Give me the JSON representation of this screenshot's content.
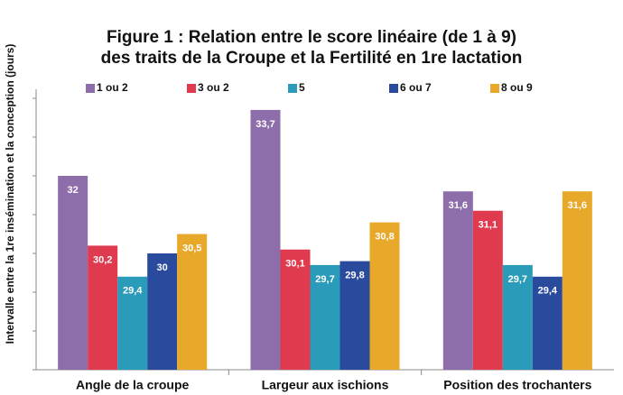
{
  "chart_data": {
    "type": "bar",
    "title": [
      "Figure 1 : Relation entre le score linéaire (de 1 à 9)",
      "des traits de la Croupe et la Fertilité en 1re lactation"
    ],
    "y_label": "Intervalle entre la 1re insémination et la conception (jours)",
    "categories": [
      "Angle de la croupe",
      "Largeur aux ischions",
      "Position des trochanters"
    ],
    "series": [
      {
        "name": "1 ou 2",
        "color": "#8e6eaa",
        "values": [
          32,
          33.7,
          31.6
        ],
        "value_labels": [
          "32",
          "33,7",
          "31,6"
        ]
      },
      {
        "name": "3 ou 2",
        "color": "#e03a4e",
        "values": [
          30.2,
          30.1,
          31.1
        ],
        "value_labels": [
          "30,2",
          "30,1",
          "31,1"
        ]
      },
      {
        "name": "5",
        "color": "#2a9bb8",
        "values": [
          29.4,
          29.7,
          29.7
        ],
        "value_labels": [
          "29,4",
          "29,7",
          "29,7"
        ]
      },
      {
        "name": "6 ou 7",
        "color": "#2a4a9e",
        "values": [
          30,
          29.8,
          29.4
        ],
        "value_labels": [
          "30",
          "29,8",
          "29,4"
        ]
      },
      {
        "name": "8 ou 9",
        "color": "#e8a82a",
        "values": [
          30.5,
          30.8,
          31.6
        ],
        "value_labels": [
          "30,5",
          "30,8",
          "31,6"
        ]
      }
    ],
    "ylim": [
      27,
      34
    ],
    "yticks": [
      27,
      28,
      29,
      30,
      31,
      32,
      33,
      34
    ],
    "legend": "top"
  }
}
